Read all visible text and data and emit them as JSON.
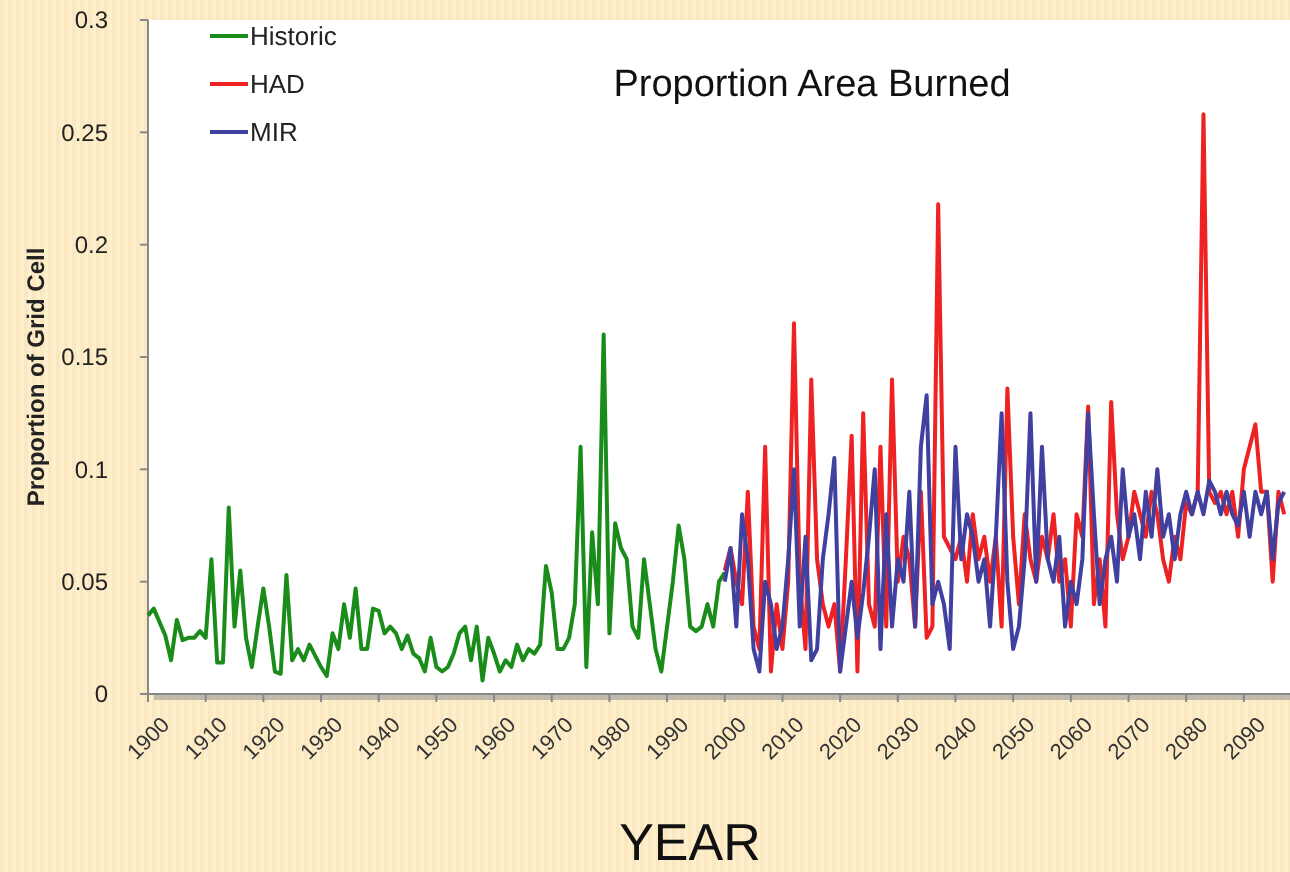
{
  "chart_data": {
    "type": "line",
    "title": "Proportion Area Burned",
    "xlabel": "YEAR",
    "ylabel": "Proportion of Grid Cell",
    "xlim": [
      1900,
      2098
    ],
    "xticks": [
      1900,
      1910,
      1920,
      1930,
      1940,
      1950,
      1960,
      1970,
      1980,
      1990,
      2000,
      2010,
      2020,
      2030,
      2040,
      2050,
      2060,
      2070,
      2080,
      2090
    ],
    "ylim": [
      0,
      0.3
    ],
    "yticks": [
      0,
      0.05,
      0.1,
      0.15,
      0.2,
      0.25,
      0.3
    ],
    "grid": false,
    "legend": "top left",
    "marker": "none",
    "line_style": "solid",
    "series": [
      {
        "name": "Historic",
        "color": "#1a8c1a",
        "x": [
          1900,
          1901,
          1902,
          1903,
          1904,
          1905,
          1906,
          1907,
          1908,
          1909,
          1910,
          1911,
          1912,
          1913,
          1914,
          1915,
          1916,
          1917,
          1918,
          1919,
          1920,
          1921,
          1922,
          1923,
          1924,
          1925,
          1926,
          1927,
          1928,
          1929,
          1930,
          1931,
          1932,
          1933,
          1934,
          1935,
          1936,
          1937,
          1938,
          1939,
          1940,
          1941,
          1942,
          1943,
          1944,
          1945,
          1946,
          1947,
          1948,
          1949,
          1950,
          1951,
          1952,
          1953,
          1954,
          1955,
          1956,
          1957,
          1958,
          1959,
          1960,
          1961,
          1962,
          1963,
          1964,
          1965,
          1966,
          1967,
          1968,
          1969,
          1970,
          1971,
          1972,
          1973,
          1974,
          1975,
          1976,
          1977,
          1978,
          1979,
          1980,
          1981,
          1982,
          1983,
          1984,
          1985,
          1986,
          1987,
          1988,
          1989,
          1990,
          1991,
          1992,
          1993,
          1994,
          1995,
          1996,
          1997,
          1998,
          1999,
          2000
        ],
        "values": [
          0.035,
          0.038,
          0.032,
          0.026,
          0.015,
          0.033,
          0.024,
          0.025,
          0.025,
          0.028,
          0.025,
          0.06,
          0.014,
          0.014,
          0.083,
          0.03,
          0.055,
          0.025,
          0.012,
          0.03,
          0.047,
          0.03,
          0.01,
          0.009,
          0.053,
          0.015,
          0.02,
          0.015,
          0.022,
          0.017,
          0.012,
          0.008,
          0.027,
          0.02,
          0.04,
          0.025,
          0.047,
          0.02,
          0.02,
          0.038,
          0.037,
          0.027,
          0.03,
          0.027,
          0.02,
          0.026,
          0.018,
          0.016,
          0.01,
          0.025,
          0.012,
          0.01,
          0.012,
          0.018,
          0.027,
          0.03,
          0.015,
          0.03,
          0.006,
          0.025,
          0.018,
          0.01,
          0.015,
          0.012,
          0.022,
          0.015,
          0.02,
          0.018,
          0.022,
          0.057,
          0.045,
          0.02,
          0.02,
          0.025,
          0.04,
          0.11,
          0.012,
          0.072,
          0.04,
          0.16,
          0.027,
          0.076,
          0.065,
          0.06,
          0.03,
          0.025,
          0.06,
          0.04,
          0.02,
          0.01,
          0.03,
          0.05,
          0.075,
          0.06,
          0.03,
          0.028,
          0.03,
          0.04,
          0.03,
          0.05,
          0.054
        ]
      },
      {
        "name": "HAD",
        "color": "#ee2222",
        "x": [
          2000,
          2001,
          2002,
          2003,
          2004,
          2005,
          2006,
          2007,
          2008,
          2009,
          2010,
          2011,
          2012,
          2013,
          2014,
          2015,
          2016,
          2017,
          2018,
          2019,
          2020,
          2021,
          2022,
          2023,
          2024,
          2025,
          2026,
          2027,
          2028,
          2029,
          2030,
          2031,
          2032,
          2033,
          2034,
          2035,
          2036,
          2037,
          2038,
          2039,
          2040,
          2041,
          2042,
          2043,
          2044,
          2045,
          2046,
          2047,
          2048,
          2049,
          2050,
          2051,
          2052,
          2053,
          2054,
          2055,
          2056,
          2057,
          2058,
          2059,
          2060,
          2061,
          2062,
          2063,
          2064,
          2065,
          2066,
          2067,
          2068,
          2069,
          2070,
          2071,
          2072,
          2073,
          2074,
          2075,
          2076,
          2077,
          2078,
          2079,
          2080,
          2081,
          2082,
          2083,
          2084,
          2085,
          2086,
          2087,
          2088,
          2089,
          2090,
          2091,
          2092,
          2093,
          2094,
          2095,
          2096,
          2097
        ],
        "values": [
          0.055,
          0.065,
          0.05,
          0.04,
          0.09,
          0.03,
          0.02,
          0.11,
          0.01,
          0.04,
          0.02,
          0.05,
          0.165,
          0.05,
          0.02,
          0.14,
          0.06,
          0.04,
          0.03,
          0.04,
          0.01,
          0.06,
          0.115,
          0.01,
          0.125,
          0.04,
          0.03,
          0.11,
          0.03,
          0.14,
          0.05,
          0.07,
          0.06,
          0.03,
          0.09,
          0.025,
          0.03,
          0.218,
          0.07,
          0.065,
          0.06,
          0.07,
          0.05,
          0.08,
          0.06,
          0.07,
          0.05,
          0.07,
          0.03,
          0.136,
          0.07,
          0.04,
          0.08,
          0.06,
          0.05,
          0.07,
          0.06,
          0.08,
          0.05,
          0.06,
          0.03,
          0.08,
          0.07,
          0.128,
          0.04,
          0.06,
          0.03,
          0.13,
          0.08,
          0.06,
          0.07,
          0.09,
          0.08,
          0.07,
          0.09,
          0.08,
          0.06,
          0.05,
          0.07,
          0.06,
          0.085,
          0.08,
          0.09,
          0.258,
          0.09,
          0.085,
          0.09,
          0.08,
          0.09,
          0.07,
          0.1,
          0.11,
          0.12,
          0.09,
          0.09,
          0.05,
          0.09,
          0.08
        ]
      },
      {
        "name": "MIR",
        "color": "#4040a0",
        "x": [
          2000,
          2001,
          2002,
          2003,
          2004,
          2005,
          2006,
          2007,
          2008,
          2009,
          2010,
          2011,
          2012,
          2013,
          2014,
          2015,
          2016,
          2017,
          2018,
          2019,
          2020,
          2021,
          2022,
          2023,
          2024,
          2025,
          2026,
          2027,
          2028,
          2029,
          2030,
          2031,
          2032,
          2033,
          2034,
          2035,
          2036,
          2037,
          2038,
          2039,
          2040,
          2041,
          2042,
          2043,
          2044,
          2045,
          2046,
          2047,
          2048,
          2049,
          2050,
          2051,
          2052,
          2053,
          2054,
          2055,
          2056,
          2057,
          2058,
          2059,
          2060,
          2061,
          2062,
          2063,
          2064,
          2065,
          2066,
          2067,
          2068,
          2069,
          2070,
          2071,
          2072,
          2073,
          2074,
          2075,
          2076,
          2077,
          2078,
          2079,
          2080,
          2081,
          2082,
          2083,
          2084,
          2085,
          2086,
          2087,
          2088,
          2089,
          2090,
          2091,
          2092,
          2093,
          2094,
          2095,
          2096,
          2097
        ],
        "values": [
          0.05,
          0.065,
          0.03,
          0.08,
          0.06,
          0.02,
          0.01,
          0.05,
          0.04,
          0.02,
          0.03,
          0.06,
          0.1,
          0.03,
          0.07,
          0.015,
          0.02,
          0.06,
          0.08,
          0.105,
          0.01,
          0.03,
          0.05,
          0.025,
          0.045,
          0.07,
          0.1,
          0.02,
          0.08,
          0.03,
          0.06,
          0.05,
          0.09,
          0.03,
          0.11,
          0.133,
          0.04,
          0.05,
          0.04,
          0.02,
          0.11,
          0.06,
          0.08,
          0.07,
          0.05,
          0.06,
          0.03,
          0.07,
          0.125,
          0.05,
          0.02,
          0.03,
          0.06,
          0.125,
          0.05,
          0.11,
          0.06,
          0.05,
          0.07,
          0.03,
          0.05,
          0.04,
          0.06,
          0.125,
          0.08,
          0.04,
          0.06,
          0.07,
          0.05,
          0.1,
          0.07,
          0.08,
          0.06,
          0.09,
          0.07,
          0.1,
          0.07,
          0.08,
          0.06,
          0.08,
          0.09,
          0.08,
          0.09,
          0.08,
          0.095,
          0.09,
          0.08,
          0.09,
          0.08,
          0.075,
          0.09,
          0.07,
          0.09,
          0.08,
          0.09,
          0.06,
          0.085,
          0.09
        ]
      }
    ]
  }
}
